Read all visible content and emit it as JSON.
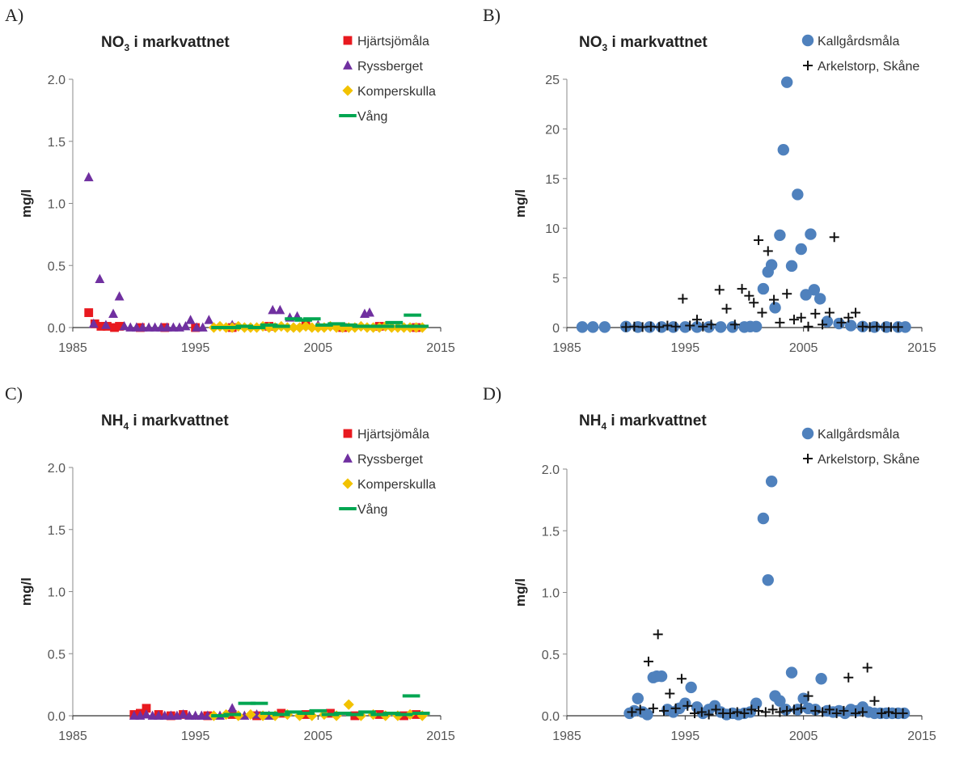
{
  "panels": [
    {
      "letter": "A)",
      "title_main": "NO",
      "title_sub": "3",
      "title_rest": " i markvattnet",
      "ylabel": "mg/l",
      "xticks": [
        "1985",
        "1995",
        "2005",
        "2015"
      ],
      "yticks": [
        "0.0",
        "0.5",
        "1.0",
        "1.5",
        "2.0"
      ],
      "legend": [
        "Hjärtsjömåla",
        "Ryssberget",
        "Komperskulla",
        "Vång"
      ]
    },
    {
      "letter": "B)",
      "title_main": "NO",
      "title_sub": "3",
      "title_rest": " i markvattnet",
      "ylabel": "mg/l",
      "xticks": [
        "1985",
        "1995",
        "2005",
        "2015"
      ],
      "yticks": [
        "0",
        "5",
        "10",
        "15",
        "20",
        "25"
      ],
      "legend": [
        "Kallgårdsmåla",
        "Arkelstorp, Skåne"
      ]
    },
    {
      "letter": "C)",
      "title_main": "NH",
      "title_sub": "4",
      "title_rest": " i markvattnet",
      "ylabel": "mg/l",
      "xticks": [
        "1985",
        "1995",
        "2005",
        "2015"
      ],
      "yticks": [
        "0.0",
        "0.5",
        "1.0",
        "1.5",
        "2.0"
      ],
      "legend": [
        "Hjärtsjömåla",
        "Ryssberget",
        "Komperskulla",
        "Vång"
      ]
    },
    {
      "letter": "D)",
      "title_main": "NH",
      "title_sub": "4",
      "title_rest": " i markvattnet",
      "ylabel": "mg/l",
      "xticks": [
        "1985",
        "1995",
        "2005",
        "2015"
      ],
      "yticks": [
        "0.0",
        "0.5",
        "1.0",
        "1.5",
        "2.0"
      ],
      "legend": [
        "Kallgårdsmåla",
        "Arkelstorp, Skåne"
      ]
    }
  ],
  "chart_data": [
    {
      "type": "scatter",
      "title": "NO3 i markvattnet",
      "xlabel": "",
      "ylabel": "mg/l",
      "xlim": [
        1985,
        2015
      ],
      "ylim": [
        0,
        2.0
      ],
      "grid": false,
      "legend_position": "top-right",
      "series": [
        {
          "name": "Hjärtsjömåla",
          "marker": "square",
          "color": "#e8191f",
          "x": [
            1986.3,
            1986.8,
            1987.3,
            1987.8,
            1988.4,
            1988.8,
            1990.5,
            1992.5,
            1995.0,
            1998.0,
            2001.0,
            2004.0,
            2007.0,
            2010.0,
            2013.0
          ],
          "y": [
            0.12,
            0.03,
            0.01,
            0.01,
            0.0,
            0.01,
            0.0,
            0.0,
            0.0,
            0.0,
            0.01,
            0.02,
            0.0,
            0.01,
            0.0
          ]
        },
        {
          "name": "Ryssberget",
          "marker": "triangle",
          "color": "#7030a0",
          "x": [
            1986.3,
            1986.7,
            1987.2,
            1987.7,
            1988.3,
            1988.8,
            1989.2,
            1989.7,
            1990.2,
            1990.7,
            1991.2,
            1991.7,
            1992.2,
            1992.7,
            1993.2,
            1993.7,
            1994.2,
            1994.6,
            1995.1,
            1995.6,
            1996.1,
            1998.0,
            2001.3,
            2001.9,
            2002.7,
            2003.3,
            2005.0,
            2008.8,
            2009.2
          ],
          "y": [
            1.21,
            0.03,
            0.39,
            0.02,
            0.11,
            0.25,
            0.01,
            0.0,
            0.0,
            0.0,
            0.0,
            0.0,
            0.0,
            0.0,
            0.0,
            0.0,
            0.01,
            0.06,
            0.0,
            0.0,
            0.06,
            0.02,
            0.14,
            0.14,
            0.08,
            0.09,
            0.02,
            0.11,
            0.12
          ]
        },
        {
          "name": "Komperskulla",
          "marker": "diamond",
          "color": "#f2c200",
          "x": [
            1996.5,
            1997.0,
            1997.5,
            1998.0,
            1998.5,
            1999.0,
            1999.5,
            2000.0,
            2000.5,
            2001.0,
            2001.5,
            2002.0,
            2002.5,
            2003.0,
            2003.5,
            2004.0,
            2004.5,
            2005.0,
            2005.5,
            2006.0,
            2006.5,
            2007.0,
            2007.5,
            2008.0,
            2008.5,
            2009.0,
            2009.5,
            2010.0,
            2010.5,
            2011.0,
            2011.5,
            2012.0,
            2012.5,
            2013.0,
            2013.5
          ],
          "y": [
            0.0,
            0.01,
            0.0,
            0.0,
            0.01,
            0.0,
            0.0,
            0.0,
            0.01,
            0.0,
            0.0,
            0.01,
            0.0,
            0.0,
            0.0,
            0.01,
            0.0,
            0.0,
            0.0,
            0.01,
            0.0,
            0.0,
            0.0,
            0.0,
            0.01,
            0.0,
            0.0,
            0.0,
            0.01,
            0.0,
            0.0,
            0.0,
            0.0,
            0.0,
            0.0
          ]
        },
        {
          "name": "Vång",
          "marker": "dash",
          "color": "#00a651",
          "x": [
            1997.0,
            1998.0,
            1999.0,
            2000.0,
            2001.0,
            2002.0,
            2003.0,
            2003.8,
            2004.5,
            2005.5,
            2006.5,
            2007.5,
            2008.5,
            2009.5,
            2010.5,
            2011.2,
            2012.0,
            2012.7,
            2013.3
          ],
          "y": [
            0.0,
            0.0,
            0.01,
            0.0,
            0.02,
            0.01,
            0.07,
            0.06,
            0.07,
            0.02,
            0.03,
            0.02,
            0.01,
            0.01,
            0.01,
            0.04,
            0.01,
            0.1,
            0.01
          ]
        }
      ]
    },
    {
      "type": "scatter",
      "title": "NO3 i markvattnet",
      "xlabel": "",
      "ylabel": "mg/l",
      "xlim": [
        1985,
        2015
      ],
      "ylim": [
        0,
        25
      ],
      "grid": false,
      "legend_position": "top-right",
      "series": [
        {
          "name": "Kallgårdsmåla",
          "marker": "circle",
          "color": "#4f81bd",
          "x": [
            1986.3,
            1987.2,
            1988.2,
            1990.0,
            1991.0,
            1992.0,
            1993.0,
            1994.0,
            1995.0,
            1996.0,
            1997.0,
            1998.0,
            1999.0,
            2000.0,
            2000.5,
            2001.0,
            2001.6,
            2002.0,
            2002.3,
            2002.6,
            2003.0,
            2003.3,
            2003.6,
            2004.0,
            2004.5,
            2004.8,
            2005.2,
            2005.6,
            2005.9,
            2006.4,
            2007.0,
            2008.0,
            2009.0,
            2010.0,
            2011.0,
            2012.0,
            2013.0,
            2013.6
          ],
          "y": [
            0.05,
            0.05,
            0.05,
            0.1,
            0.05,
            0.05,
            0.05,
            0.05,
            0.05,
            0.05,
            0.05,
            0.05,
            0.05,
            0.05,
            0.1,
            0.1,
            3.9,
            5.6,
            6.3,
            2.0,
            9.3,
            17.9,
            24.7,
            6.2,
            13.4,
            7.9,
            3.3,
            9.4,
            3.8,
            2.9,
            0.6,
            0.4,
            0.2,
            0.1,
            0.05,
            0.05,
            0.05,
            0.05
          ]
        },
        {
          "name": "Arkelstorp, Skåne",
          "marker": "plus",
          "color": "#111111",
          "x": [
            1990.0,
            1990.7,
            1991.4,
            1992.1,
            1992.8,
            1993.5,
            1994.2,
            1994.8,
            1995.4,
            1996.0,
            1996.5,
            1997.2,
            1997.9,
            1998.5,
            1999.2,
            1999.8,
            2000.4,
            2000.8,
            2001.2,
            2001.5,
            2002.0,
            2002.5,
            2003.0,
            2003.6,
            2004.2,
            2004.8,
            2005.4,
            2006.0,
            2006.6,
            2007.2,
            2007.6,
            2008.2,
            2008.8,
            2009.4,
            2010.0,
            2010.6,
            2011.2,
            2011.8,
            2012.4,
            2013.0
          ],
          "y": [
            0.05,
            0.1,
            0.05,
            0.1,
            0.05,
            0.2,
            0.1,
            2.9,
            0.2,
            0.8,
            0.1,
            0.3,
            3.8,
            1.9,
            0.3,
            3.9,
            3.2,
            2.5,
            8.8,
            1.5,
            7.7,
            2.8,
            0.5,
            3.4,
            0.8,
            1.0,
            0.1,
            1.4,
            0.3,
            1.5,
            9.1,
            0.5,
            1.0,
            1.5,
            0.1,
            0.05,
            0.1,
            0.05,
            0.05,
            0.05
          ]
        }
      ]
    },
    {
      "type": "scatter",
      "title": "NH4 i markvattnet",
      "xlabel": "",
      "ylabel": "mg/l",
      "xlim": [
        1985,
        2015
      ],
      "ylim": [
        0,
        2.0
      ],
      "grid": false,
      "legend_position": "top-right",
      "series": [
        {
          "name": "Hjärtsjömåla",
          "marker": "square",
          "color": "#e8191f",
          "x": [
            1990.0,
            1990.5,
            1991.0,
            1992.0,
            1993.0,
            1994.0,
            1996.0,
            1998.0,
            2000.0,
            2002.0,
            2004.0,
            2006.0,
            2008.0,
            2010.0,
            2012.0,
            2013.0
          ],
          "y": [
            0.01,
            0.02,
            0.06,
            0.01,
            0.0,
            0.01,
            0.0,
            0.01,
            0.0,
            0.02,
            0.01,
            0.02,
            0.0,
            0.01,
            0.0,
            0.01
          ]
        },
        {
          "name": "Ryssberget",
          "marker": "triangle",
          "color": "#7030a0",
          "x": [
            1990.0,
            1990.5,
            1991.0,
            1991.5,
            1992.0,
            1992.5,
            1993.0,
            1993.5,
            1994.0,
            1994.5,
            1995.0,
            1995.5,
            1996.0,
            1997.0,
            1998.0,
            1999.0,
            2000.0,
            2001.0
          ],
          "y": [
            0.0,
            0.0,
            0.01,
            0.0,
            0.0,
            0.0,
            0.0,
            0.0,
            0.01,
            0.0,
            0.0,
            0.0,
            0.0,
            0.0,
            0.06,
            0.0,
            0.01,
            0.0
          ]
        },
        {
          "name": "Komperskulla",
          "marker": "diamond",
          "color": "#f2c200",
          "x": [
            1996.5,
            1997.5,
            1998.5,
            1999.5,
            2000.5,
            2001.5,
            2002.5,
            2003.5,
            2004.5,
            2005.5,
            2006.5,
            2007.5,
            2008.5,
            2009.5,
            2010.5,
            2011.5,
            2012.5,
            2013.5
          ],
          "y": [
            0.0,
            0.01,
            0.0,
            0.01,
            0.0,
            0.0,
            0.01,
            0.0,
            0.0,
            0.01,
            0.0,
            0.09,
            0.0,
            0.01,
            0.0,
            0.0,
            0.01,
            0.0
          ]
        },
        {
          "name": "Vång",
          "marker": "dash",
          "color": "#00a651",
          "x": [
            1997.0,
            1998.0,
            1999.2,
            2000.2,
            2001.0,
            2002.0,
            2003.0,
            2004.0,
            2005.0,
            2006.0,
            2007.0,
            2008.0,
            2009.0,
            2010.0,
            2011.0,
            2012.0,
            2012.6,
            2013.4
          ],
          "y": [
            0.0,
            0.01,
            0.1,
            0.1,
            0.02,
            0.01,
            0.03,
            0.02,
            0.04,
            0.01,
            0.02,
            0.01,
            0.03,
            0.01,
            0.02,
            0.01,
            0.16,
            0.02
          ]
        }
      ]
    },
    {
      "type": "scatter",
      "title": "NH4 i markvattnet",
      "xlabel": "",
      "ylabel": "mg/l",
      "xlim": [
        1985,
        2015
      ],
      "ylim": [
        0,
        2.0
      ],
      "grid": false,
      "legend_position": "top-right",
      "series": [
        {
          "name": "Kallgårdsmåla",
          "marker": "circle",
          "color": "#4f81bd",
          "x": [
            1990.3,
            1990.7,
            1991.0,
            1991.4,
            1991.8,
            1992.3,
            1992.6,
            1993.0,
            1993.5,
            1994.0,
            1994.5,
            1995.0,
            1995.5,
            1996.0,
            1996.5,
            1997.0,
            1997.5,
            1998.0,
            1998.5,
            1999.0,
            1999.5,
            2000.0,
            2000.5,
            2001.0,
            2001.6,
            2002.0,
            2002.3,
            2002.6,
            2003.0,
            2003.5,
            2004.0,
            2004.5,
            2005.0,
            2005.4,
            2006.0,
            2006.5,
            2007.0,
            2007.5,
            2008.0,
            2008.5,
            2009.0,
            2009.5,
            2010.0,
            2010.5,
            2011.0,
            2011.5,
            2012.0,
            2012.5,
            2013.0,
            2013.5
          ],
          "y": [
            0.02,
            0.04,
            0.14,
            0.03,
            0.01,
            0.31,
            0.32,
            0.32,
            0.05,
            0.03,
            0.06,
            0.1,
            0.23,
            0.07,
            0.02,
            0.05,
            0.08,
            0.03,
            0.01,
            0.02,
            0.01,
            0.02,
            0.03,
            0.1,
            1.6,
            1.1,
            1.9,
            0.16,
            0.12,
            0.05,
            0.35,
            0.05,
            0.14,
            0.06,
            0.05,
            0.3,
            0.04,
            0.03,
            0.04,
            0.02,
            0.05,
            0.04,
            0.07,
            0.03,
            0.02,
            0.02,
            0.02,
            0.02,
            0.02,
            0.02
          ]
        },
        {
          "name": "Arkelstorp, Skåne",
          "marker": "plus",
          "color": "#111111",
          "x": [
            1990.5,
            1991.2,
            1991.9,
            1992.3,
            1992.7,
            1993.2,
            1993.7,
            1994.2,
            1994.7,
            1995.2,
            1995.8,
            1996.4,
            1997.0,
            1997.6,
            1998.2,
            1998.8,
            1999.4,
            2000.0,
            2000.6,
            2001.2,
            2001.8,
            2002.4,
            2003.0,
            2003.6,
            2004.2,
            2004.8,
            2005.4,
            2006.0,
            2006.6,
            2007.2,
            2007.8,
            2008.4,
            2008.8,
            2009.4,
            2010.0,
            2010.4,
            2011.0,
            2011.6,
            2012.2,
            2012.8,
            2013.4
          ],
          "y": [
            0.03,
            0.05,
            0.44,
            0.06,
            0.66,
            0.04,
            0.18,
            0.06,
            0.3,
            0.08,
            0.02,
            0.03,
            0.01,
            0.05,
            0.02,
            0.02,
            0.03,
            0.02,
            0.05,
            0.04,
            0.03,
            0.05,
            0.03,
            0.04,
            0.05,
            0.06,
            0.16,
            0.04,
            0.03,
            0.05,
            0.02,
            0.04,
            0.31,
            0.02,
            0.03,
            0.39,
            0.12,
            0.02,
            0.03,
            0.02,
            0.02
          ]
        }
      ]
    }
  ]
}
